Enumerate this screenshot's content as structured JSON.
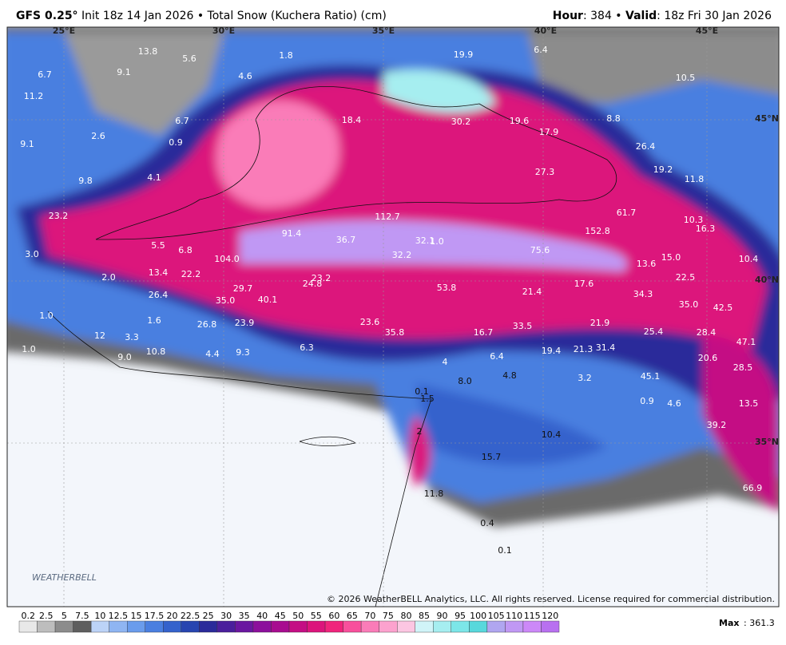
{
  "header": {
    "model": "GFS 0.25°",
    "init": "Init 18z 14 Jan 2026 • Total Snow (Kuchera Ratio) (cm)",
    "hour_label": "Hour",
    "hour": ": 384 • ",
    "valid_label": "Valid",
    "valid": ": 18z Fri 30 Jan 2026"
  },
  "map": {
    "graticule": [
      "25°E",
      "30°E",
      "35°E",
      "40°E",
      "45°E",
      "45°N",
      "40°N",
      "35°N"
    ],
    "labels": [
      "13.8",
      "5.6",
      "1.8",
      "19.9",
      "6.4",
      "6.7",
      "9.1",
      "4.6",
      "10.5",
      "11.2",
      "18.4",
      "30.2",
      "19.6",
      "8.8",
      "6.7",
      "17.9",
      "2.6",
      "0.9",
      "9.1",
      "26.4",
      "19.2",
      "27.3",
      "11.8",
      "4.1",
      "9.8",
      "23.2",
      "112.7",
      "61.7",
      "10.3",
      "16.3",
      "91.4",
      "36.7",
      "32.1",
      "1.0",
      "152.8",
      "5.5",
      "6.8",
      "104.0",
      "32.2",
      "75.6",
      "13.6",
      "15.0",
      "10.4",
      "3.0",
      "13.4",
      "22.2",
      "2.0",
      "23.2",
      "24.8",
      "17.6",
      "22.5",
      "29.7",
      "53.8",
      "21.4",
      "26.4",
      "35.0",
      "40.1",
      "34.3",
      "35.0",
      "42.5",
      "1.0",
      "1.6",
      "26.8",
      "23.9",
      "23.6",
      "21.9",
      "33.5",
      "16.7",
      "35.8",
      "25.4",
      "28.4",
      "12",
      "3.3",
      "47.1",
      "1.0",
      "10.8",
      "6.3",
      "21.3",
      "31.4",
      "19.4",
      "6.4",
      "9.3",
      "4.4",
      "9.0",
      "20.6",
      "28.5",
      "4",
      "45.1",
      "4.8",
      "3.2",
      "8.0",
      "0.1",
      "1.5",
      "0.9",
      "4.6",
      "13.5",
      "39.2",
      "2",
      "10.4",
      "15.7",
      "66.9",
      "11.8",
      "0.4",
      "0.1"
    ],
    "logo": "WEATHERBELL",
    "copyright": "© 2026 WeatherBELL Analytics, LLC. All rights reserved. License required for commercial distribution."
  },
  "legend": {
    "levels": [
      0.2,
      2.5,
      5,
      7.5,
      10,
      12.5,
      15,
      17.5,
      20,
      22.5,
      25,
      30,
      35,
      40,
      45,
      50,
      55,
      60,
      65,
      70,
      75,
      80,
      85,
      90,
      95,
      100,
      105,
      110,
      115,
      120
    ],
    "colors": [
      "#e8e8e8",
      "#bdbdbd",
      "#8c8c8c",
      "#5e5e5e",
      "#bcd3f7",
      "#8fb5f2",
      "#6a9cec",
      "#4a7fe0",
      "#3462cc",
      "#2745b0",
      "#2a2a9a",
      "#4a1f9c",
      "#6a17a0",
      "#8c0f9c",
      "#a80c90",
      "#c40e84",
      "#dc147c",
      "#f0247c",
      "#f8509c",
      "#fa7cb8",
      "#fca2ce",
      "#fcc6e2",
      "#d0f4f8",
      "#a6eef0",
      "#7ce6e8",
      "#58d8dc",
      "#b0a6f0",
      "#c098f4",
      "#cc88f8",
      "#b870f0"
    ],
    "max_label": "Max",
    "max": ": 361.3"
  }
}
